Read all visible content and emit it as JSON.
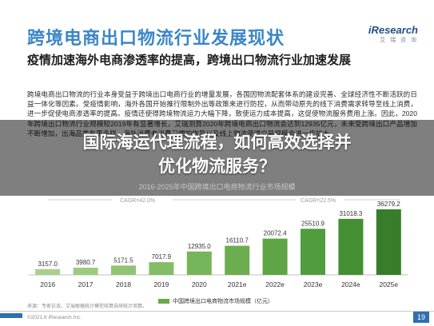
{
  "header": {
    "title": "跨境电商出口物流行业发展现状",
    "logo_main": "iResearch",
    "logo_sub": "艾 瑞 咨 询"
  },
  "subtitle": "疫情加速海外电商渗透率的提高，跨境出口物流行业加速发展",
  "body_text": "跨境电商出口物流的行业本身受益于跨境出口电商行业的增量发展，各国因物流配套体系的建设完善、全球经济性不断活跃的日益一体化等因素。受疫情影响，海外各国开始推行限制外出等政策来进行防控，从而带动原先的线下消费需求转导至线上消费，进一步促使电商渗透率的提高。疫情还使得跨境物流运力大幅下降，致使运力成本提高，这促使物流服务费用上涨。因此，2020年跨境出口物流行业规模较2019年有显著增长，艾瑞测算2020年跨境电商出口物流会达到12935亿元，未来受跨境出口产品增加不断增加，出海品类有更多样，海外消费者消费习惯的恢复以及线上物流使得交易规模会进一步扩大。",
  "overlay": {
    "title_line1": "国际海运代理流程，如何高效选择并",
    "title_line2": "优化物流服务？"
  },
  "chart_subtitle": "2016-2025年中国跨境出口电商物流行业市场规模",
  "cagr_labels": [
    "CAGR=42.0%",
    "CAGR=22.5%"
  ],
  "chart_data": {
    "type": "bar",
    "categories": [
      "2016",
      "2017",
      "2018",
      "2019",
      "2020",
      "2021e",
      "2022e",
      "2023e",
      "2024e",
      "2025e"
    ],
    "series": [
      {
        "name": "中国跨境出口电商物流市场规模（亿元）",
        "values": [
          3157.0,
          3980.7,
          5171.5,
          7017.9,
          12935.0,
          16110.7,
          20072.4,
          25510.9,
          31018.3,
          36279.2
        ],
        "labels": [
          "3157.0",
          "3980.7",
          "5171.5",
          "7017.9",
          "12935.0",
          "16110.7",
          "20072.4",
          "25510.9",
          "31018.3",
          "36279.2"
        ]
      }
    ],
    "ylim": [
      0,
      36279.2
    ],
    "colors": [
      "#a7d08c",
      "#9ccb7f",
      "#90c473",
      "#84bd66",
      "#77b55a",
      "#6cae4f",
      "#5ea545",
      "#519c3c",
      "#448f33",
      "#377d2a"
    ]
  },
  "legend_label": "中国跨境出口电商物流市场规模（亿元）",
  "source": "来源：专家访谈，艾瑞根据统计模型核算自研统计测算。",
  "copyright": "©2021.6 iResearch Inc.",
  "footer_right": "www.iresearch.com.cn",
  "page_number": "19"
}
